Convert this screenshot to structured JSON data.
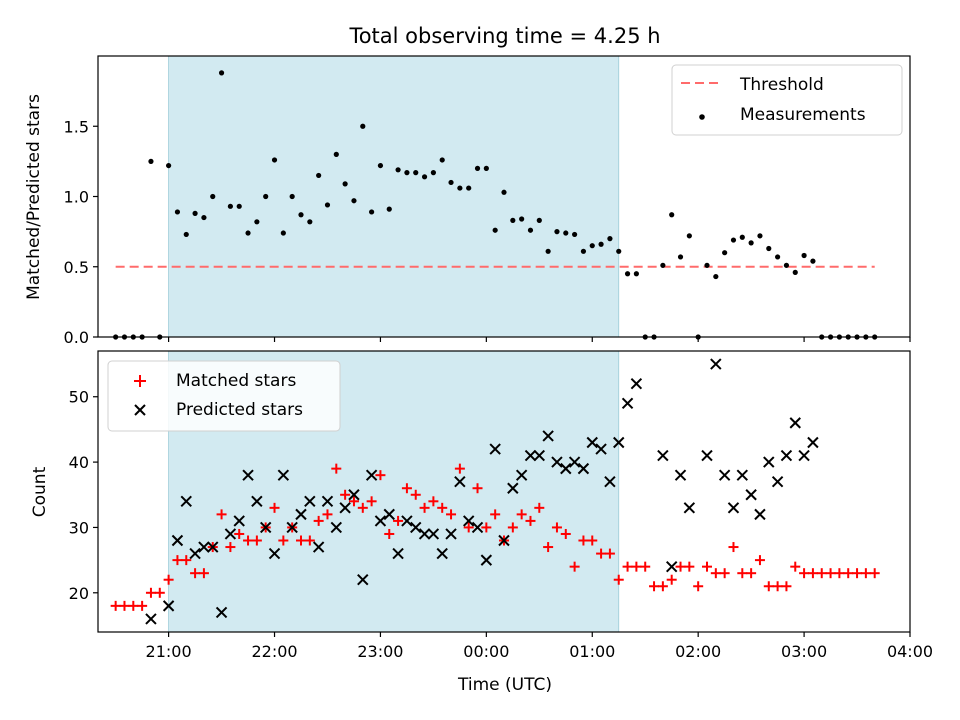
{
  "figure": {
    "title": "Total observing time = 4.25 h",
    "xlabel": "Time (UTC)"
  },
  "chart_data": [
    {
      "type": "scatter",
      "panel": "top",
      "ylabel": "Matched/Predicted stars",
      "xlim": [
        "20:20",
        "04:00"
      ],
      "ylim": [
        0,
        2.0
      ],
      "xticks": [
        "21:00",
        "22:00",
        "23:00",
        "00:00",
        "01:00",
        "02:00",
        "03:00",
        "04:00"
      ],
      "yticks": [
        "0.0",
        "0.5",
        "1.0",
        "1.5"
      ],
      "legend_position": "upper right",
      "shaded_span": {
        "start": "21:00",
        "end": "01:15",
        "color": "#add8e6"
      },
      "threshold": {
        "name": "Threshold",
        "value": 0.5,
        "x_range": [
          "20:30",
          "03:40"
        ],
        "color": "#ff6b6b",
        "style": "dashed"
      },
      "series": [
        {
          "name": "Measurements",
          "color": "#000000",
          "marker": "dot",
          "x": [
            "20:30",
            "20:35",
            "20:40",
            "20:45",
            "20:50",
            "20:55",
            "21:00",
            "21:05",
            "21:10",
            "21:15",
            "21:20",
            "21:25",
            "21:30",
            "21:35",
            "21:40",
            "21:45",
            "21:50",
            "21:55",
            "22:00",
            "22:05",
            "22:10",
            "22:15",
            "22:20",
            "22:25",
            "22:30",
            "22:35",
            "22:40",
            "22:45",
            "22:50",
            "22:55",
            "23:00",
            "23:05",
            "23:10",
            "23:15",
            "23:20",
            "23:25",
            "23:30",
            "23:35",
            "23:40",
            "23:45",
            "23:50",
            "23:55",
            "00:00",
            "00:05",
            "00:10",
            "00:15",
            "00:20",
            "00:25",
            "00:30",
            "00:35",
            "00:40",
            "00:45",
            "00:50",
            "00:55",
            "01:00",
            "01:05",
            "01:10",
            "01:15",
            "01:20",
            "01:25",
            "01:30",
            "01:35",
            "01:40",
            "01:45",
            "01:50",
            "01:55",
            "02:00",
            "02:05",
            "02:10",
            "02:15",
            "02:20",
            "02:25",
            "02:30",
            "02:35",
            "02:40",
            "02:45",
            "02:50",
            "02:55",
            "03:00",
            "03:05",
            "03:10",
            "03:15",
            "03:20",
            "03:25",
            "03:30",
            "03:35",
            "03:40"
          ],
          "y": [
            0,
            0,
            0,
            0,
            1.25,
            0,
            1.22,
            0.89,
            0.73,
            0.88,
            0.85,
            1.0,
            1.88,
            0.93,
            0.93,
            0.74,
            0.82,
            1.0,
            1.26,
            0.74,
            1.0,
            0.87,
            0.82,
            1.15,
            0.94,
            1.3,
            1.09,
            0.97,
            1.5,
            0.89,
            1.22,
            0.91,
            1.19,
            1.17,
            1.17,
            1.14,
            1.17,
            1.26,
            1.1,
            1.06,
            1.06,
            1.2,
            1.2,
            0.76,
            1.03,
            0.83,
            0.84,
            0.76,
            0.83,
            0.61,
            0.75,
            0.74,
            0.73,
            0.61,
            0.65,
            0.66,
            0.7,
            0.61,
            0.45,
            0.45,
            0,
            0,
            0.51,
            0.87,
            0.57,
            0.72,
            0,
            0.51,
            0.43,
            0.6,
            0.69,
            0.71,
            0.67,
            0.72,
            0.63,
            0.57,
            0.51,
            0.46,
            0.58,
            0.54,
            0,
            0,
            0,
            0,
            0,
            0,
            0
          ]
        }
      ]
    },
    {
      "type": "scatter",
      "panel": "bottom",
      "ylabel": "Count",
      "xlim": [
        "20:20",
        "04:00"
      ],
      "ylim": [
        14,
        57
      ],
      "xticks": [
        "21:00",
        "22:00",
        "23:00",
        "00:00",
        "01:00",
        "02:00",
        "03:00",
        "04:00"
      ],
      "yticks": [
        "20",
        "30",
        "40",
        "50"
      ],
      "legend_position": "upper left",
      "shaded_span": {
        "start": "21:00",
        "end": "01:15",
        "color": "#add8e6"
      },
      "series": [
        {
          "name": "Matched stars",
          "color": "#ff0000",
          "marker": "plus",
          "x": [
            "20:30",
            "20:35",
            "20:40",
            "20:45",
            "20:50",
            "20:55",
            "21:00",
            "21:05",
            "21:10",
            "21:15",
            "21:20",
            "21:25",
            "21:30",
            "21:35",
            "21:40",
            "21:45",
            "21:50",
            "21:55",
            "22:00",
            "22:05",
            "22:10",
            "22:15",
            "22:20",
            "22:25",
            "22:30",
            "22:35",
            "22:40",
            "22:45",
            "22:50",
            "22:55",
            "23:00",
            "23:05",
            "23:10",
            "23:15",
            "23:20",
            "23:25",
            "23:30",
            "23:35",
            "23:40",
            "23:45",
            "23:50",
            "23:55",
            "00:00",
            "00:05",
            "00:10",
            "00:15",
            "00:20",
            "00:25",
            "00:30",
            "00:35",
            "00:40",
            "00:45",
            "00:50",
            "00:55",
            "01:00",
            "01:05",
            "01:10",
            "01:15",
            "01:20",
            "01:25",
            "01:30",
            "01:35",
            "01:40",
            "01:45",
            "01:50",
            "01:55",
            "02:00",
            "02:05",
            "02:10",
            "02:15",
            "02:20",
            "02:25",
            "02:30",
            "02:35",
            "02:40",
            "02:45",
            "02:50",
            "02:55",
            "03:00",
            "03:05",
            "03:10",
            "03:15",
            "03:20",
            "03:25",
            "03:30",
            "03:35",
            "03:40"
          ],
          "y": [
            18,
            18,
            18,
            18,
            20,
            20,
            22,
            25,
            25,
            23,
            23,
            27,
            32,
            27,
            29,
            28,
            28,
            30,
            33,
            28,
            30,
            28,
            28,
            31,
            32,
            39,
            35,
            34,
            33,
            34,
            38,
            29,
            31,
            36,
            35,
            33,
            34,
            33,
            32,
            39,
            30,
            36,
            30,
            32,
            28,
            30,
            32,
            31,
            33,
            27,
            30,
            29,
            24,
            28,
            28,
            26,
            26,
            22,
            24,
            24,
            24,
            21,
            21,
            22,
            24,
            24,
            21,
            24,
            23,
            23,
            27,
            23,
            23,
            25,
            21,
            21,
            21,
            24,
            23,
            23,
            23,
            23,
            23,
            23,
            23,
            23,
            23
          ]
        },
        {
          "name": "Predicted stars",
          "color": "#000000",
          "marker": "x",
          "x": [
            "20:50",
            "21:00",
            "21:05",
            "21:10",
            "21:15",
            "21:20",
            "21:25",
            "21:30",
            "21:35",
            "21:40",
            "21:45",
            "21:50",
            "21:55",
            "22:00",
            "22:05",
            "22:10",
            "22:15",
            "22:20",
            "22:25",
            "22:30",
            "22:35",
            "22:40",
            "22:45",
            "22:50",
            "22:55",
            "23:00",
            "23:05",
            "23:10",
            "23:15",
            "23:20",
            "23:25",
            "23:30",
            "23:35",
            "23:40",
            "23:45",
            "23:50",
            "23:55",
            "00:00",
            "00:05",
            "00:10",
            "00:15",
            "00:20",
            "00:25",
            "00:30",
            "00:35",
            "00:40",
            "00:45",
            "00:50",
            "00:55",
            "01:00",
            "01:05",
            "01:10",
            "01:15",
            "01:20",
            "01:25",
            "01:40",
            "01:45",
            "01:50",
            "01:55",
            "02:05",
            "02:10",
            "02:15",
            "02:20",
            "02:25",
            "02:30",
            "02:35",
            "02:40",
            "02:45",
            "02:50",
            "02:55",
            "03:00",
            "03:05"
          ],
          "y": [
            16,
            18,
            28,
            34,
            26,
            27,
            27,
            17,
            29,
            31,
            38,
            34,
            30,
            26,
            38,
            30,
            32,
            34,
            27,
            34,
            30,
            33,
            35,
            22,
            38,
            31,
            32,
            26,
            31,
            30,
            29,
            29,
            26,
            29,
            37,
            31,
            30,
            25,
            42,
            28,
            36,
            38,
            41,
            41,
            44,
            40,
            39,
            40,
            39,
            43,
            42,
            37,
            43,
            49,
            52,
            41,
            24,
            38,
            33,
            41,
            55,
            38,
            33,
            38,
            35,
            32,
            40,
            37,
            41,
            46,
            41,
            43
          ]
        }
      ]
    }
  ]
}
